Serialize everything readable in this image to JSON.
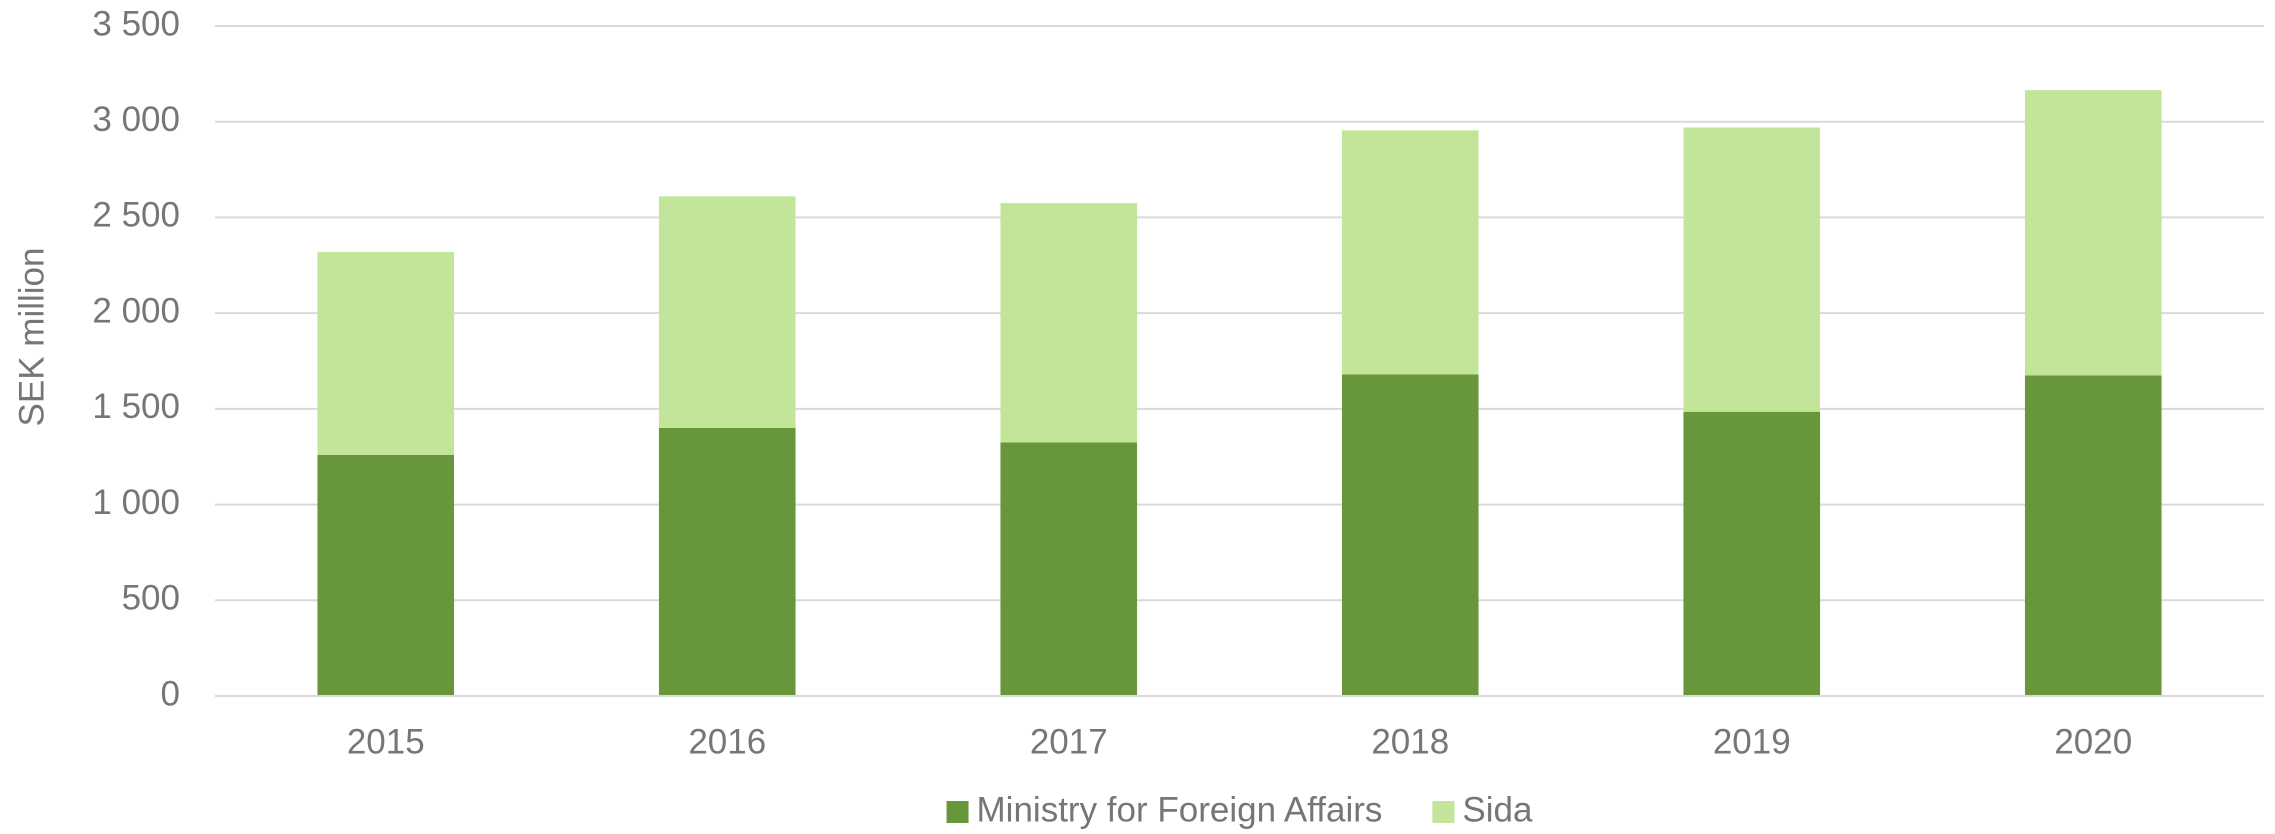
{
  "chart_data": {
    "type": "stacked-bar",
    "y_label": "SEK million",
    "categories": [
      "2015",
      "2016",
      "2017",
      "2018",
      "2019",
      "2020"
    ],
    "series": [
      {
        "name": "Ministry for Foreign Affairs",
        "color": "#68963b",
        "values": [
          1260,
          1400,
          1325,
          1680,
          1485,
          1675
        ]
      },
      {
        "name": "Sida",
        "color": "#c2e59a",
        "values": [
          1060,
          1210,
          1250,
          1275,
          1485,
          1490
        ]
      }
    ],
    "ylim": [
      0,
      3500
    ],
    "yticks": [
      0,
      500,
      {
        "value": 1000,
        "label": "1 000"
      },
      {
        "value": 1500,
        "label": "1 500"
      },
      {
        "value": 2000,
        "label": "2 000"
      },
      {
        "value": 2500,
        "label": "2 500"
      },
      {
        "value": 3000,
        "label": "3 000"
      },
      {
        "value": 3500,
        "label": "3 500"
      }
    ],
    "grid": true,
    "legend": "bottom"
  }
}
